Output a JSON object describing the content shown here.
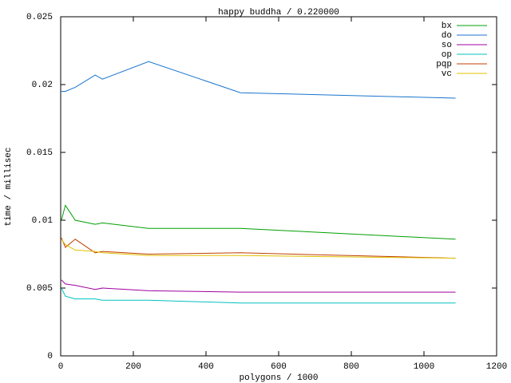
{
  "chart_data": {
    "type": "line",
    "title": "happy buddha / 0.220000",
    "x_label": "polygons / 1000",
    "y_label": "time / millisec",
    "x": [
      2,
      13,
      40,
      95,
      115,
      242,
      495,
      1087
    ],
    "series": [
      {
        "name": "bx",
        "color": "#00a000",
        "values": [
          0.01,
          0.0111,
          0.01,
          0.0097,
          0.0098,
          0.0094,
          0.0094,
          0.0086
        ]
      },
      {
        "name": "do",
        "color": "#1874cd",
        "values": [
          0.0195,
          0.0195,
          0.0198,
          0.0207,
          0.0204,
          0.0217,
          0.0194,
          0.019
        ]
      },
      {
        "name": "so",
        "color": "#a000a0",
        "values": [
          0.0056,
          0.0053,
          0.0052,
          0.0049,
          0.005,
          0.0048,
          0.0047,
          0.0047
        ]
      },
      {
        "name": "op",
        "color": "#00c0c0",
        "values": [
          0.005,
          0.0044,
          0.0042,
          0.0042,
          0.0041,
          0.0041,
          0.0039,
          0.0039
        ]
      },
      {
        "name": "pqp",
        "color": "#c04000",
        "values": [
          0.0087,
          0.008,
          0.0086,
          0.0076,
          0.0077,
          0.0075,
          0.0076,
          0.0072
        ]
      },
      {
        "name": "vc",
        "color": "#e0c000",
        "values": [
          0.0086,
          0.0082,
          0.0078,
          0.0077,
          0.0076,
          0.0074,
          0.0074,
          0.0072
        ]
      }
    ],
    "xlim": [
      0,
      1200
    ],
    "xticks": [
      0,
      200,
      400,
      600,
      800,
      1000,
      1200
    ],
    "ylim": [
      0,
      0.025
    ],
    "yticks": [
      0,
      0.005,
      0.01,
      0.015,
      0.02,
      0.025
    ],
    "legend": "top-right",
    "grid": false
  }
}
